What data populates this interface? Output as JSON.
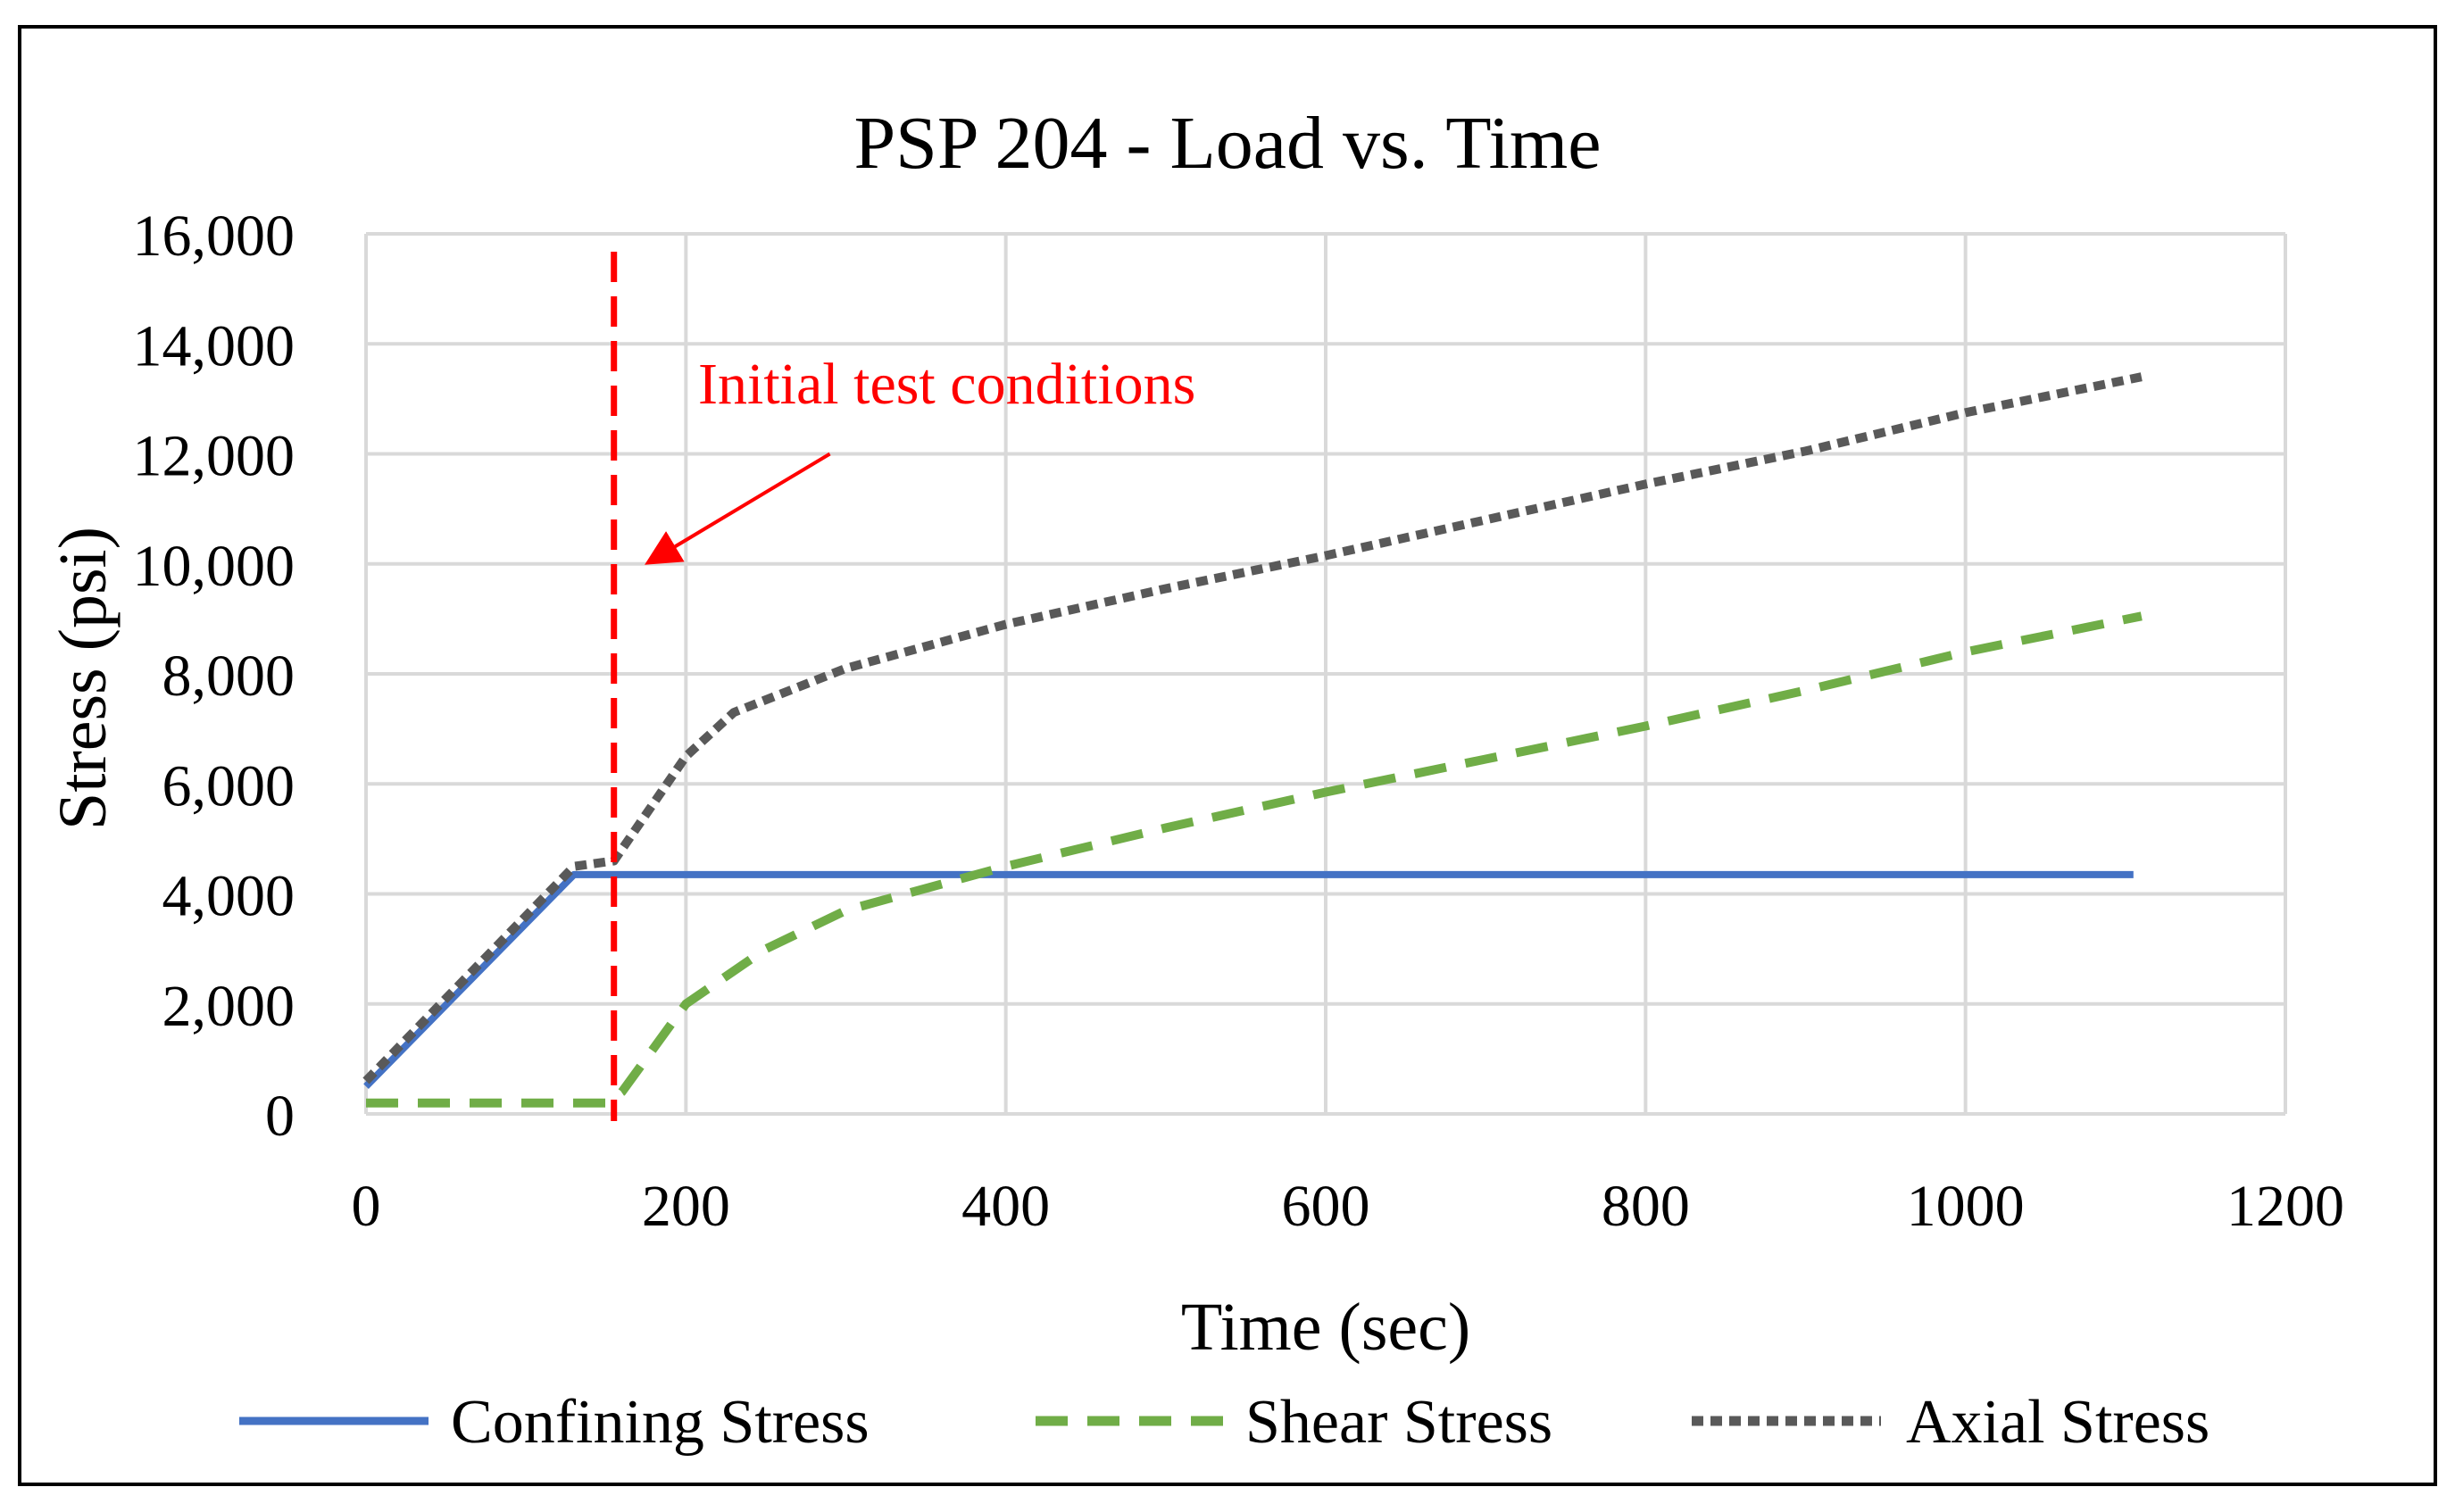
{
  "chart_data": {
    "type": "line",
    "title": "PSP 204 - Load vs. Time",
    "xlabel": "Time (sec)",
    "ylabel": "Stress (psi)",
    "xlim": [
      0,
      1200
    ],
    "ylim": [
      0,
      16000
    ],
    "x_ticks": [
      0,
      200,
      400,
      600,
      800,
      1000,
      1200
    ],
    "x_tick_labels": [
      "0",
      "200",
      "400",
      "600",
      "800",
      "1000",
      "1200"
    ],
    "y_ticks": [
      0,
      2000,
      4000,
      6000,
      8000,
      10000,
      12000,
      14000,
      16000
    ],
    "y_tick_labels": [
      "0",
      "2,000",
      "4,000",
      "6,000",
      "8,000",
      "10,000",
      "12,000",
      "14,000",
      "16,000"
    ],
    "grid": true,
    "legend_position": "bottom",
    "series": [
      {
        "name": "Confining Stress",
        "color": "#4472C4",
        "style": "solid",
        "points": [
          [
            0,
            500
          ],
          [
            130,
            4350
          ],
          [
            1105,
            4350
          ]
        ]
      },
      {
        "name": "Shear Stress",
        "color": "#70AD47",
        "style": "dashed",
        "points": [
          [
            0,
            200
          ],
          [
            150,
            200
          ],
          [
            160,
            400
          ],
          [
            200,
            2000
          ],
          [
            250,
            3000
          ],
          [
            300,
            3700
          ],
          [
            400,
            4500
          ],
          [
            500,
            5200
          ],
          [
            600,
            5850
          ],
          [
            700,
            6450
          ],
          [
            800,
            7050
          ],
          [
            900,
            7700
          ],
          [
            1000,
            8400
          ],
          [
            1110,
            9050
          ]
        ]
      },
      {
        "name": "Axial Stress",
        "color": "#595959",
        "style": "dotted",
        "points": [
          [
            0,
            600
          ],
          [
            130,
            4500
          ],
          [
            155,
            4600
          ],
          [
            200,
            6500
          ],
          [
            230,
            7300
          ],
          [
            300,
            8100
          ],
          [
            400,
            8900
          ],
          [
            500,
            9550
          ],
          [
            600,
            10150
          ],
          [
            700,
            10800
          ],
          [
            800,
            11450
          ],
          [
            900,
            12050
          ],
          [
            1000,
            12750
          ],
          [
            1110,
            13400
          ]
        ]
      }
    ],
    "annotations": {
      "vline_x": 155,
      "vline_color": "#FF0000",
      "label": "Initial test conditions",
      "label_color": "#FF0000",
      "arrow_tail": [
        290,
        12000
      ],
      "arrow_head": [
        178,
        10050
      ]
    }
  }
}
